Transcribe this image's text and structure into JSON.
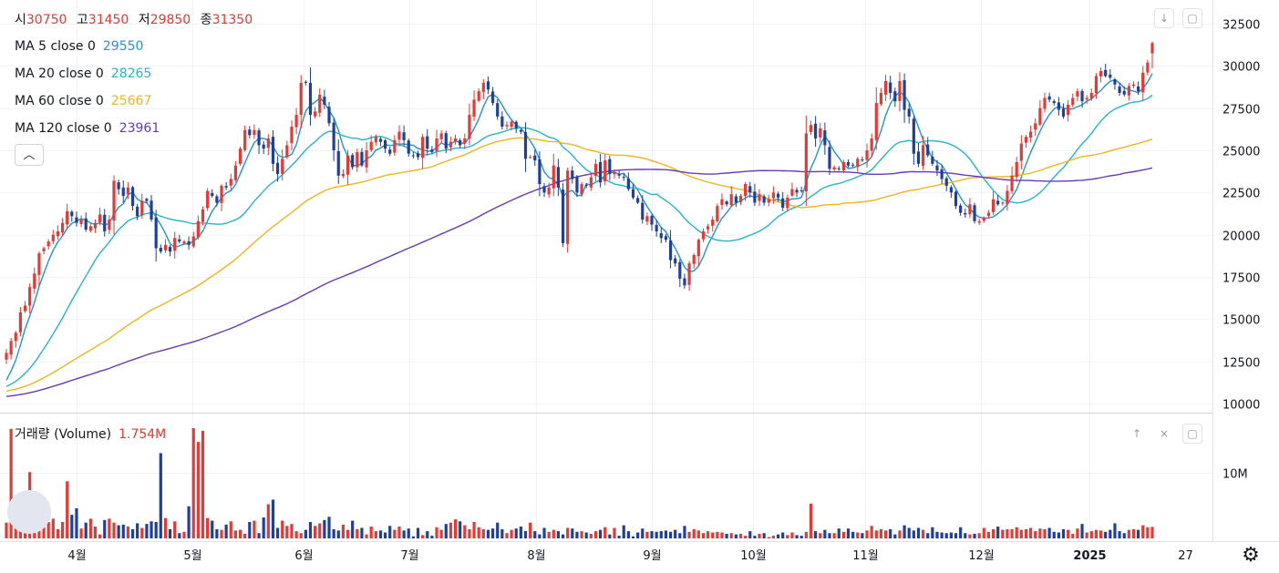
{
  "ohlc": {
    "open_label": "시",
    "open": "30750",
    "high_label": "고",
    "high": "31450",
    "low_label": "저",
    "low": "29850",
    "close_label": "종",
    "close": "31350"
  },
  "indicators": [
    {
      "label": "MA 5 close 0",
      "value": "29550",
      "color": "#2196c9"
    },
    {
      "label": "MA 20 close 0",
      "value": "28265",
      "color": "#26b4cc"
    },
    {
      "label": "MA 60 close 0",
      "value": "25667",
      "color": "#f2b51e"
    },
    {
      "label": "MA 120 close 0",
      "value": "23961",
      "color": "#673ab7"
    }
  ],
  "collapse_icon": "chevron-up-icon",
  "volume": {
    "label": "거래량 (Volume)",
    "value": "1.754M"
  },
  "colors": {
    "up": "#e53935",
    "down": "#1e3f9e",
    "grid": "#f0f3fa",
    "axis_text": "#131722"
  },
  "chart_data": {
    "type": "candlestick",
    "title": "",
    "price_axis": {
      "ticks": [
        10000,
        12500,
        15000,
        17500,
        20000,
        22500,
        25000,
        27500,
        30000,
        32500
      ],
      "ylim": [
        9600,
        33500
      ]
    },
    "volume_axis": {
      "ticks": [
        "10M"
      ],
      "ylim_millions": [
        0,
        18
      ]
    },
    "x_ticks": [
      "4월",
      "5월",
      "6월",
      "7월",
      "8월",
      "9월",
      "10월",
      "11월",
      "12월",
      "2025",
      "27"
    ],
    "closes": [
      13000,
      13700,
      14200,
      15400,
      15800,
      16900,
      17700,
      18900,
      19200,
      19600,
      20000,
      20200,
      20700,
      21400,
      21100,
      20700,
      20900,
      20300,
      20500,
      20700,
      21200,
      20200,
      20900,
      23200,
      22700,
      22300,
      22800,
      21700,
      21100,
      22000,
      22000,
      20900,
      19200,
      19000,
      19400,
      19000,
      19800,
      19600,
      19600,
      19400,
      19900,
      20800,
      21500,
      22600,
      22300,
      21900,
      22900,
      22800,
      23300,
      24100,
      25100,
      26200,
      25900,
      26200,
      25300,
      25100,
      25700,
      24200,
      23600,
      24500,
      25300,
      26400,
      27100,
      29000,
      29000,
      27100,
      27300,
      28300,
      27700,
      26600,
      25000,
      23500,
      23600,
      24700,
      24000,
      24900,
      24100,
      25000,
      25500,
      25800,
      25500,
      25100,
      24800,
      25600,
      26100,
      25600,
      24800,
      24700,
      24600,
      25800,
      25100,
      24900,
      25700,
      26000,
      25100,
      25500,
      25700,
      25300,
      25700,
      27100,
      28000,
      28500,
      29000,
      28600,
      27800,
      27000,
      26400,
      26500,
      26700,
      26300,
      26100,
      24500,
      24600,
      24400,
      23000,
      22500,
      22800,
      24100,
      22800,
      19500,
      23800,
      23300,
      22500,
      23000,
      22900,
      23400,
      24200,
      23100,
      24400,
      23600,
      23700,
      23500,
      23400,
      22700,
      22200,
      21900,
      20900,
      21100,
      20600,
      20200,
      19800,
      19700,
      18500,
      18300,
      17400,
      17000,
      18300,
      18800,
      19700,
      20200,
      20500,
      20900,
      21700,
      22100,
      21800,
      22400,
      21900,
      22300,
      23000,
      22500,
      21900,
      22400,
      21900,
      22100,
      22500,
      22200,
      21600,
      22200,
      22700,
      22500,
      22600,
      26000,
      26500,
      25700,
      26300,
      25300,
      23900,
      24000,
      23900,
      24300,
      24100,
      24100,
      24500,
      24400,
      25000,
      25700,
      27800,
      28400,
      29100,
      28400,
      27900,
      29100,
      27400,
      27000,
      24800,
      24200,
      25300,
      24700,
      24200,
      23800,
      23300,
      22900,
      22500,
      21700,
      21300,
      21200,
      21800,
      20800,
      20800,
      21000,
      21300,
      22100,
      21800,
      21900,
      22600,
      23500,
      24300,
      25400,
      25800,
      26100,
      26600,
      27500,
      28100,
      28000,
      27800,
      27400,
      27000,
      27700,
      28100,
      28500,
      27900,
      28100,
      28400,
      29400,
      29700,
      29400,
      29300,
      28900,
      28400,
      28300,
      28800,
      28900,
      28500,
      29600,
      30200,
      31350
    ],
    "volume_millions": [
      2.4,
      16.7,
      2.0,
      2.8,
      2.1,
      10.1,
      3.0,
      2.6,
      4.4,
      2.5,
      3.0,
      1.4,
      2.5,
      8.7,
      3.6,
      4.6,
      1.5,
      2.4,
      3.0,
      1.8,
      0.6,
      2.8,
      3.0,
      2.4,
      2.0,
      2.1,
      1.8,
      1.4,
      2.3,
      1.6,
      2.2,
      2.6,
      2.5,
      13.0,
      3.1,
      1.4,
      2.6,
      0.8,
      1.0,
      4.9,
      16.8,
      14.7,
      16.4,
      3.1,
      2.7,
      1.4,
      1.3,
      2.1,
      2.6,
      1.2,
      1.3,
      0.7,
      2.5,
      2.7,
      0.8,
      3.2,
      5.2,
      5.9,
      1.6,
      2.7,
      1.9,
      2.2,
      1.1,
      0.8,
      1.3,
      2.5,
      1.9,
      2.3,
      2.8,
      3.3,
      1.4,
      1.2,
      2.1,
      1.3,
      2.7,
      1.4,
      1.6,
      0.6,
      1.8,
      1.1,
      1.2,
      0.9,
      1.9,
      1.3,
      1.8,
      1.2,
      1.5,
      0.3,
      1.6,
      0.5,
      1.1,
      0.4,
      1.7,
      1.3,
      2.2,
      2.4,
      2.9,
      2.6,
      2.0,
      1.4,
      2.5,
      1.7,
      1.4,
      1.3,
      1.5,
      2.4,
      1.4,
      0.8,
      1.3,
      1.5,
      1.8,
      1.1,
      2.4,
      1.1,
      0.6,
      1.6,
      1.0,
      1.3,
      1.1,
      0.6,
      1.6,
      1.5,
      1.0,
      1.1,
      0.9,
      0.7,
      1.1,
      1.3,
      1.7,
      0.6,
      1.6,
      0.4,
      2.0,
      1.1,
      0.3,
      0.9,
      1.5,
      1.0,
      1.1,
      1.0,
      1.1,
      1.2,
      1.0,
      1.3,
      0.8,
      1.9,
      1.0,
      1.4,
      1.2,
      0.8,
      1.1,
      0.9,
      1.0,
      0.9,
      0.7,
      0.8,
      0.6,
      0.7,
      0.4,
      1.1,
      0.4,
      0.7,
      0.8,
      0.2,
      0.4,
      0.6,
      0.9,
      0.5,
      0.9,
      0.5,
      0.4,
      1.0,
      5.3,
      1.1,
      0.8,
      1.3,
      0.8,
      0.8,
      1.5,
      1.0,
      1.5,
      1.0,
      0.9,
      0.8,
      1.2,
      1.9,
      1.2,
      1.4,
      1.2,
      1.4,
      0.6,
      1.2,
      2.0,
      1.6,
      1.2,
      1.6,
      1.3,
      0.8,
      1.7,
      1.0,
      0.9,
      0.8,
      0.9,
      0.8,
      1.7,
      0.8,
      0.6,
      0.7,
      0.8,
      1.6,
      1.0,
      1.4,
      1.8,
      1.3,
      1.4,
      1.4,
      1.7,
      1.3,
      1.4,
      1.6,
      1.1,
      1.5,
      1.4,
      1.6,
      1.0,
      0.9,
      1.4,
      1.3,
      0.7,
      1.5,
      2.2,
      0.9,
      1.1,
      1.3,
      1.2,
      1.0,
      1.3,
      2.3,
      1.1,
      0.8,
      1.3,
      1.4,
      1.3,
      2.0,
      1.7,
      1.754
    ],
    "moving_averages": [
      {
        "name": "MA 5",
        "period": 5,
        "last": 29550
      },
      {
        "name": "MA 20",
        "period": 20,
        "last": 28265
      },
      {
        "name": "MA 60",
        "period": 60,
        "last": 25667
      },
      {
        "name": "MA 120",
        "period": 120,
        "last": 23961
      }
    ]
  }
}
